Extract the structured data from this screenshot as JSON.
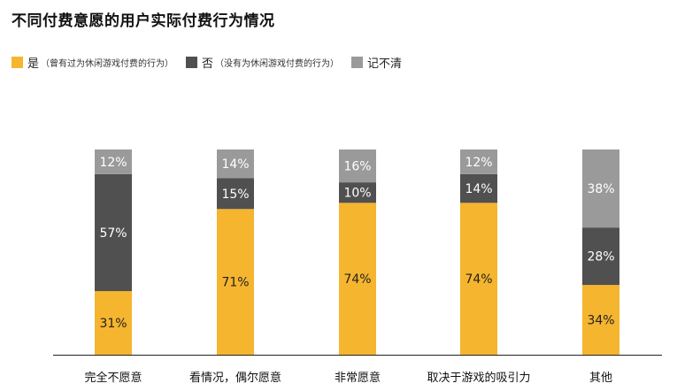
{
  "chart_data": {
    "type": "bar",
    "stacked": true,
    "title": "不同付费意愿的用户实际付费行为情况",
    "categories": [
      "完全不愿意",
      "看情况，偶尔愿意",
      "非常愿意",
      "取决于游戏的吸引力",
      "其他"
    ],
    "series": [
      {
        "name": "是",
        "note": "（曾有过为休闲游戏付费的行为）",
        "color": "#F5B52E",
        "label_color": "#222222",
        "values": [
          31,
          71,
          74,
          74,
          34
        ]
      },
      {
        "name": "否",
        "note": "（没有为休闲游戏付费的行为）",
        "color": "#505050",
        "label_color": "#ffffff",
        "values": [
          57,
          15,
          10,
          14,
          28
        ]
      },
      {
        "name": "记不清",
        "note": "",
        "color": "#9A9A9A",
        "label_color": "#ffffff",
        "values": [
          12,
          14,
          16,
          12,
          38
        ]
      }
    ],
    "value_suffix": "%",
    "ylim": [
      0,
      100
    ],
    "grid": false,
    "legend_position": "top-left"
  }
}
